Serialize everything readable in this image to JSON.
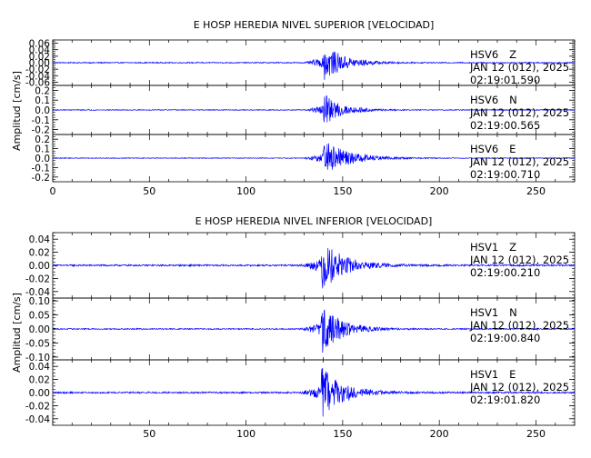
{
  "chart_data": [
    {
      "type": "line",
      "title": "E HOSP HEREDIA NIVEL SUPERIOR [VELOCIDAD]",
      "ylabel": "Amplitud [cm/s]",
      "xlabel": "",
      "xlim": [
        0,
        270
      ],
      "x_ticks": [
        0,
        50,
        100,
        150,
        200,
        250
      ],
      "series_color": "#0000ff",
      "traces": [
        {
          "name": "HSV6 Z",
          "station": "HSV6",
          "component": "Z",
          "date": "JAN 12 (012), 2025",
          "time": "02:19:01.590",
          "ylim": [
            -0.07,
            0.07
          ],
          "y_ticks": [
            0.06,
            0.04,
            0.02,
            0.0,
            -0.02,
            -0.04,
            -0.06
          ],
          "tick_labels": [
            "0.06",
            "0.04",
            "0.02",
            "0.00",
            "-0.02",
            "-0.04",
            "-0.06"
          ],
          "signal": {
            "noise": 0.0015,
            "onset": 130,
            "arrival": 140,
            "peak": 0.06,
            "decay": 10
          }
        },
        {
          "name": "HSV6 N",
          "station": "HSV6",
          "component": "N",
          "date": "JAN 12 (012), 2025",
          "time": "02:19:00.565",
          "ylim": [
            -0.25,
            0.25
          ],
          "y_ticks": [
            0.2,
            0.1,
            0.0,
            -0.1,
            -0.2
          ],
          "tick_labels": [
            "0.2",
            "0.1",
            "0.0",
            "-0.1",
            "-0.2"
          ],
          "signal": {
            "noise": 0.004,
            "onset": 130,
            "arrival": 140,
            "peak": 0.17,
            "decay": 9
          }
        },
        {
          "name": "HSV6 E",
          "station": "HSV6",
          "component": "E",
          "date": "JAN 12 (012), 2025",
          "time": "02:19:00.710",
          "ylim": [
            -0.25,
            0.25
          ],
          "y_ticks": [
            0.2,
            0.1,
            0.0,
            -0.1,
            -0.2
          ],
          "tick_labels": [
            "0.2",
            "0.1",
            "0.0",
            "-0.1",
            "-0.2"
          ],
          "signal": {
            "noise": 0.004,
            "onset": 130,
            "arrival": 140,
            "peak": 0.2,
            "decay": 12
          }
        }
      ]
    },
    {
      "type": "line",
      "title": "E HOSP HEREDIA NIVEL INFERIOR [VELOCIDAD]",
      "ylabel": "Amplitud [cm/s]",
      "xlabel": "",
      "xlim": [
        0,
        270
      ],
      "x_ticks": [
        50,
        100,
        150,
        200,
        250
      ],
      "series_color": "#0000ff",
      "traces": [
        {
          "name": "HSV1 Z",
          "station": "HSV1",
          "component": "Z",
          "date": "JAN 12 (012), 2025",
          "time": "02:19:00.210",
          "ylim": [
            -0.05,
            0.05
          ],
          "y_ticks": [
            0.04,
            0.02,
            0.0,
            -0.02,
            -0.04
          ],
          "tick_labels": [
            "0.04",
            "0.02",
            "0.00",
            "-0.02",
            "-0.04"
          ],
          "signal": {
            "noise": 0.0012,
            "onset": 128,
            "arrival": 139,
            "peak": 0.04,
            "decay": 11
          }
        },
        {
          "name": "HSV1 N",
          "station": "HSV1",
          "component": "N",
          "date": "JAN 12 (012), 2025",
          "time": "02:19:00.840",
          "ylim": [
            -0.11,
            0.11
          ],
          "y_ticks": [
            0.1,
            0.05,
            0.0,
            -0.05,
            -0.1
          ],
          "tick_labels": [
            "0.10",
            "0.05",
            "0.00",
            "-0.05",
            "-0.10"
          ],
          "signal": {
            "noise": 0.002,
            "onset": 128,
            "arrival": 139,
            "peak": 0.09,
            "decay": 10
          }
        },
        {
          "name": "HSV1 E",
          "station": "HSV1",
          "component": "E",
          "date": "JAN 12 (012), 2025",
          "time": "02:19:01.820",
          "ylim": [
            -0.05,
            0.05
          ],
          "y_ticks": [
            0.04,
            0.02,
            0.0,
            -0.02,
            -0.04
          ],
          "tick_labels": [
            "0.04",
            "0.02",
            "0.00",
            "-0.02",
            "-0.04"
          ],
          "signal": {
            "noise": 0.0012,
            "onset": 128,
            "arrival": 139,
            "peak": 0.04,
            "decay": 11
          }
        }
      ]
    }
  ]
}
